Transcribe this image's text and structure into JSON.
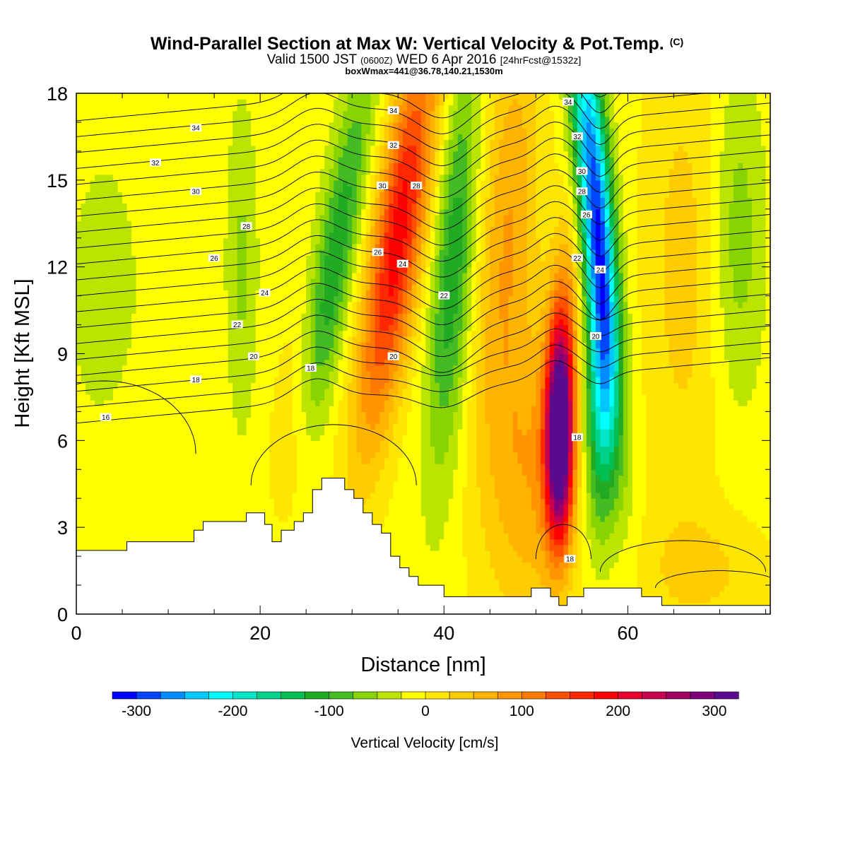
{
  "chart_data": {
    "type": "heatmap",
    "title": "Wind-Parallel Section at Max W: Vertical Velocity & Pot.Temp.",
    "title_mark": "(C)",
    "subtitle_parts": [
      "Valid 1500 JST ",
      "(0600Z)",
      " WED 6 Apr 2016 ",
      "[24hrFcst@1532z]"
    ],
    "subtitle2": "boxWmax=441@36.78,140.21,1530m",
    "xlabel": "Distance [nm]",
    "ylabel": "Height [Kft MSL]",
    "xlim": [
      0,
      75.5
    ],
    "ylim": [
      0,
      18
    ],
    "x_ticks": [
      0,
      20,
      40,
      60
    ],
    "x_tick_labels": [
      "0",
      "20",
      "40",
      "60"
    ],
    "y_ticks": [
      0,
      3,
      6,
      9,
      12,
      15,
      18
    ],
    "y_tick_labels": [
      "0",
      "3",
      "6",
      "9",
      "12",
      "15",
      "18"
    ],
    "colorbar": {
      "label": "Vertical Velocity [cm/s]",
      "range": [
        -325,
        325
      ],
      "step": 25,
      "tick_values": [
        -300,
        -200,
        -100,
        0,
        100,
        200,
        300
      ],
      "tick_labels": [
        "-300",
        "-200",
        "-100",
        "0",
        "100",
        "200",
        "300"
      ],
      "colors": [
        "#0000ff",
        "#0046ff",
        "#008cff",
        "#00c8ff",
        "#00ffff",
        "#00e6c8",
        "#00d28c",
        "#00be50",
        "#22aa22",
        "#44bb22",
        "#88d400",
        "#bbe400",
        "#ffff00",
        "#ffe600",
        "#ffcc00",
        "#ffb400",
        "#ff9600",
        "#ff7800",
        "#ff5000",
        "#ff2800",
        "#ff0000",
        "#e6002d",
        "#c80050",
        "#a00064",
        "#80007a",
        "#5a0a8c"
      ]
    },
    "vertical_velocity_cm_s": {
      "background": -10,
      "features": [
        {
          "x": 28,
          "z": 12,
          "sx": 1.6,
          "sz": 5,
          "tilt": 0.5,
          "w": -110
        },
        {
          "x": 35,
          "z": 13,
          "sx": 2.0,
          "sz": 5,
          "tilt": 0.45,
          "w": 200
        },
        {
          "x": 41,
          "z": 12,
          "sx": 1.6,
          "sz": 5,
          "tilt": 0.2,
          "w": -110
        },
        {
          "x": 47,
          "z": 14,
          "sx": 2.2,
          "sz": 5,
          "tilt": 0.2,
          "w": 80
        },
        {
          "x": 52.6,
          "z": 6,
          "sx": 1.0,
          "sz": 2.4,
          "tilt": 0.0,
          "w": 320
        },
        {
          "x": 52.8,
          "z": 8.5,
          "sx": 1.2,
          "sz": 3.5,
          "tilt": 0.15,
          "w": 120
        },
        {
          "x": 56.5,
          "z": 14,
          "sx": 1.3,
          "sz": 5,
          "tilt": -0.25,
          "w": -290
        },
        {
          "x": 57,
          "z": 7,
          "sx": 1.2,
          "sz": 3,
          "tilt": 0.0,
          "w": -140
        },
        {
          "x": 49,
          "z": 5,
          "sx": 3.5,
          "sz": 4,
          "tilt": 0.0,
          "w": 80
        },
        {
          "x": 24,
          "z": 6,
          "sx": 1.8,
          "sz": 3,
          "tilt": 0.2,
          "w": 50
        },
        {
          "x": 18,
          "z": 12,
          "sx": 1.2,
          "sz": 4,
          "tilt": 0.0,
          "w": -45
        },
        {
          "x": 66,
          "z": 12,
          "sx": 3.0,
          "sz": 6,
          "tilt": 0.0,
          "w": 45
        },
        {
          "x": 72,
          "z": 13,
          "sx": 2.0,
          "sz": 4,
          "tilt": 0.0,
          "w": -55
        },
        {
          "x": 3,
          "z": 11,
          "sx": 2.5,
          "sz": 3,
          "tilt": 0.0,
          "w": -40
        },
        {
          "x": 8,
          "z": 5,
          "sx": 4,
          "sz": 3,
          "tilt": 0.0,
          "w": 10
        },
        {
          "x": 68,
          "z": 1.5,
          "sx": 5,
          "sz": 1.5,
          "tilt": 0.0,
          "w": 40
        }
      ]
    },
    "potential_temperature_C": {
      "levels": [
        16,
        17,
        18,
        19,
        20,
        21,
        22,
        23,
        24,
        25,
        26,
        27,
        28,
        29,
        30,
        31,
        32,
        33,
        34,
        35
      ],
      "labeled": [
        {
          "value": "34",
          "x": 13,
          "z": 16.8
        },
        {
          "value": "32",
          "x": 8.6,
          "z": 15.6
        },
        {
          "value": "30",
          "x": 13,
          "z": 14.6
        },
        {
          "value": "28",
          "x": 18.5,
          "z": 13.4
        },
        {
          "value": "26",
          "x": 15,
          "z": 12.3
        },
        {
          "value": "24",
          "x": 20.5,
          "z": 11.1
        },
        {
          "value": "22",
          "x": 17.5,
          "z": 10.0
        },
        {
          "value": "20",
          "x": 19.3,
          "z": 8.9
        },
        {
          "value": "18",
          "x": 13,
          "z": 8.1
        },
        {
          "value": "18",
          "x": 25.5,
          "z": 8.5
        },
        {
          "value": "16",
          "x": 3.2,
          "z": 6.8
        },
        {
          "value": "34",
          "x": 34.5,
          "z": 17.4
        },
        {
          "value": "32",
          "x": 34.5,
          "z": 16.2
        },
        {
          "value": "30",
          "x": 33.3,
          "z": 14.8
        },
        {
          "value": "28",
          "x": 37,
          "z": 14.8
        },
        {
          "value": "26",
          "x": 32.8,
          "z": 12.5
        },
        {
          "value": "24",
          "x": 35.5,
          "z": 12.1
        },
        {
          "value": "22",
          "x": 40,
          "z": 11.0
        },
        {
          "value": "20",
          "x": 34.5,
          "z": 8.9
        },
        {
          "value": "34",
          "x": 53.5,
          "z": 17.7
        },
        {
          "value": "32",
          "x": 54.5,
          "z": 16.5
        },
        {
          "value": "30",
          "x": 55,
          "z": 15.3
        },
        {
          "value": "28",
          "x": 55,
          "z": 14.6
        },
        {
          "value": "26",
          "x": 55.5,
          "z": 13.8
        },
        {
          "value": "22",
          "x": 54.5,
          "z": 12.3
        },
        {
          "value": "24",
          "x": 57,
          "z": 11.9
        },
        {
          "value": "20",
          "x": 56.5,
          "z": 9.6
        },
        {
          "value": "18",
          "x": 54.5,
          "z": 6.1
        },
        {
          "value": "18",
          "x": 53.7,
          "z": 1.9
        }
      ]
    },
    "terrain_kft": [
      [
        0,
        2.2
      ],
      [
        5.5,
        2.2
      ],
      [
        5.5,
        2.5
      ],
      [
        12.8,
        2.5
      ],
      [
        12.8,
        2.9
      ],
      [
        13.8,
        2.9
      ],
      [
        13.8,
        3.2
      ],
      [
        18.5,
        3.2
      ],
      [
        18.5,
        3.5
      ],
      [
        20.5,
        3.5
      ],
      [
        20.5,
        3.1
      ],
      [
        21.3,
        3.1
      ],
      [
        21.3,
        2.5
      ],
      [
        22.3,
        2.5
      ],
      [
        22.3,
        2.9
      ],
      [
        23.7,
        2.9
      ],
      [
        23.7,
        3.2
      ],
      [
        24.7,
        3.2
      ],
      [
        24.7,
        3.5
      ],
      [
        25.7,
        3.5
      ],
      [
        25.7,
        4.3
      ],
      [
        26.7,
        4.3
      ],
      [
        26.7,
        4.7
      ],
      [
        29.2,
        4.7
      ],
      [
        29.2,
        4.3
      ],
      [
        30.2,
        4.3
      ],
      [
        30.2,
        4.0
      ],
      [
        31.2,
        4.0
      ],
      [
        31.2,
        3.5
      ],
      [
        32.2,
        3.5
      ],
      [
        32.2,
        3.1
      ],
      [
        33.2,
        3.1
      ],
      [
        33.2,
        2.8
      ],
      [
        34.2,
        2.8
      ],
      [
        34.2,
        2.0
      ],
      [
        35.2,
        2.0
      ],
      [
        35.2,
        1.6
      ],
      [
        36.2,
        1.6
      ],
      [
        36.2,
        1.3
      ],
      [
        37.2,
        1.3
      ],
      [
        37.2,
        1.0
      ],
      [
        40,
        1.0
      ],
      [
        40,
        0.6
      ],
      [
        49.5,
        0.6
      ],
      [
        49.5,
        0.9
      ],
      [
        51.6,
        0.9
      ],
      [
        51.6,
        0.6
      ],
      [
        52.5,
        0.6
      ],
      [
        52.5,
        0.3
      ],
      [
        53.4,
        0.3
      ],
      [
        53.4,
        0.6
      ],
      [
        55.2,
        0.6
      ],
      [
        55.2,
        0.9
      ],
      [
        61.5,
        0.9
      ],
      [
        61.5,
        0.6
      ],
      [
        63.7,
        0.6
      ],
      [
        63.7,
        0.3
      ],
      [
        75.5,
        0.3
      ]
    ]
  }
}
